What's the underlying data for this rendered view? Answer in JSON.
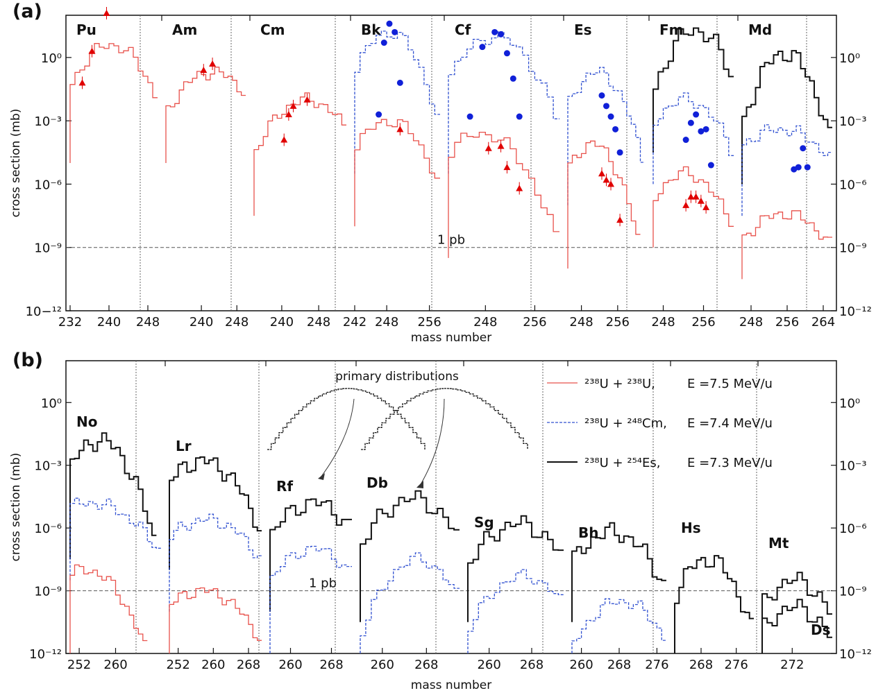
{
  "figure": {
    "panels": [
      {
        "letter": "(a)",
        "xlabel": "mass number",
        "ylabel": "cross section (mb)",
        "yticks": [
          "10−¹²",
          "10⁻⁹",
          "10⁻⁶",
          "10⁻³",
          "10⁰"
        ],
        "yticks_right": [
          "10⁻¹²",
          "10⁻⁹",
          "10⁻⁶",
          "10⁻³",
          "10⁰"
        ],
        "hline_label": "1 pb"
      },
      {
        "letter": "(b)",
        "xlabel": "mass number",
        "ylabel": "cross section (mb)",
        "yticks": [
          "10⁻¹²",
          "10⁻⁹",
          "10⁻⁶",
          "10⁻³",
          "10⁰"
        ],
        "yticks_right": [
          "10⁻¹²",
          "10⁻⁹",
          "10⁻⁶",
          "10⁻³",
          "10⁰"
        ],
        "hline_label": "1 pb",
        "annotation": "primary distributions"
      }
    ],
    "legend": [
      {
        "reaction": "²³⁸U + ²³⁸U,",
        "energy": "E =7.5 MeV/u"
      },
      {
        "reaction": "²³⁸U + ²⁴⁸Cm,",
        "energy": "E =7.4 MeV/u"
      },
      {
        "reaction": "²³⁸U + ²⁵⁴Es,",
        "energy": "E =7.3 MeV/u"
      }
    ]
  },
  "chart_data": [
    {
      "type": "line",
      "panel": "(a)",
      "ylabel": "cross section (mb)",
      "xlabel": "mass number",
      "yscale": "log",
      "ylim": [
        1e-12,
        100.0
      ],
      "hline": {
        "value": 1e-09,
        "label": "1 pb"
      },
      "colors": {
        "U238": "#e8504a",
        "Cm248": "#3050d0",
        "Es254": "#111111",
        "exp_red": "#e00000",
        "exp_blue": "#1020d8"
      },
      "subpanels": [
        {
          "element": "Pu",
          "xlim": [
            232,
            250
          ],
          "xticks": [
            "232",
            "240",
            "248"
          ],
          "series": [
            {
              "key": "U238",
              "peak_x": 240,
              "peak_logy": 0.6,
              "sigma": 4.2,
              "min_logy": -4
            }
          ],
          "exp_red": [
            [
              234,
              -1.2
            ],
            [
              236,
              0.3
            ],
            [
              239,
              2.1
            ]
          ],
          "exp_blue": []
        },
        {
          "element": "Am",
          "xlim": [
            232,
            250
          ],
          "xticks": [
            "240",
            "248"
          ],
          "series": [
            {
              "key": "U238",
              "peak_x": 242,
              "peak_logy": -0.7,
              "sigma": 4.5,
              "min_logy": -4
            }
          ],
          "exp_red": [
            [
              240,
              -0.6
            ],
            [
              242,
              -0.3
            ]
          ],
          "exp_blue": []
        },
        {
          "element": "Cm",
          "xlim": [
            234,
            254
          ],
          "xticks": [
            "240",
            "248"
          ],
          "series": [
            {
              "key": "U238",
              "peak_x": 245,
              "peak_logy": -2.0,
              "sigma": 5.0,
              "min_logy": -6.5
            }
          ],
          "exp_red": [
            [
              240,
              -3.9
            ],
            [
              241,
              -2.7
            ],
            [
              242,
              -2.3
            ],
            [
              245,
              -2.0
            ]
          ],
          "exp_blue": []
        },
        {
          "element": "Bk",
          "xlim": [
            242,
            258
          ],
          "xticks": [
            "242",
            "248",
            "256"
          ],
          "series": [
            {
              "key": "Cm248",
              "peak_x": 248,
              "peak_logy": 1.2,
              "sigma": 3.6,
              "min_logy": -4.5
            },
            {
              "key": "U238",
              "peak_x": 248,
              "peak_logy": -3.0,
              "sigma": 3.6,
              "min_logy": -7.0
            }
          ],
          "exp_red": [
            [
              250,
              -3.4
            ]
          ],
          "exp_blue": [
            [
              246,
              -2.7
            ],
            [
              247,
              0.7
            ],
            [
              248,
              1.6
            ],
            [
              249,
              1.2
            ],
            [
              250,
              -1.2
            ]
          ]
        },
        {
          "element": "Cf",
          "xlim": [
            242,
            260
          ],
          "xticks": [
            "248",
            "256"
          ],
          "series": [
            {
              "key": "Cm248",
              "peak_x": 249,
              "peak_logy": 1.0,
              "sigma": 4.0,
              "min_logy": -4.5
            },
            {
              "key": "U238",
              "peak_x": 247,
              "peak_logy": -3.6,
              "sigma": 4.0,
              "min_logy": -8.5
            }
          ],
          "exp_red": [
            [
              248,
              -4.3
            ],
            [
              250,
              -4.2
            ],
            [
              251,
              -5.2
            ],
            [
              253,
              -6.2
            ]
          ],
          "exp_blue": [
            [
              245,
              -2.8
            ],
            [
              247,
              0.5
            ],
            [
              249,
              1.2
            ],
            [
              250,
              1.1
            ],
            [
              251,
              0.2
            ],
            [
              252,
              -1.0
            ],
            [
              253,
              -2.8
            ]
          ]
        },
        {
          "element": "Es",
          "xlim": [
            245,
            262
          ],
          "xticks": [
            "248",
            "256"
          ],
          "series": [
            {
              "key": "Cm248",
              "peak_x": 251,
              "peak_logy": -0.7,
              "sigma": 3.8,
              "min_logy": -6.0
            },
            {
              "key": "U238",
              "peak_x": 250,
              "peak_logy": -4.1,
              "sigma": 3.5,
              "min_logy": -9.0
            }
          ],
          "exp_red": [
            [
              252,
              -5.5
            ],
            [
              253,
              -5.8
            ],
            [
              254,
              -6.0
            ],
            [
              256,
              -7.7
            ]
          ],
          "exp_blue": [
            [
              252,
              -1.8
            ],
            [
              253,
              -2.3
            ],
            [
              254,
              -2.8
            ],
            [
              255,
              -3.4
            ],
            [
              256,
              -4.5
            ]
          ]
        },
        {
          "element": "Fm",
          "xlim": [
            246,
            262
          ],
          "xticks": [
            "248",
            "256"
          ],
          "series": [
            {
              "key": "Es254",
              "peak_x": 254,
              "peak_logy": 1.3,
              "sigma": 3.5,
              "min_logy": -3.5
            },
            {
              "key": "Cm248",
              "peak_x": 252,
              "peak_logy": -2.0,
              "sigma": 3.4,
              "min_logy": -5.0
            },
            {
              "key": "U238",
              "peak_x": 252,
              "peak_logy": -5.5,
              "sigma": 3.0,
              "min_logy": -8.0
            }
          ],
          "exp_red": [
            [
              252,
              -7.0
            ],
            [
              253,
              -6.6
            ],
            [
              254,
              -6.6
            ],
            [
              255,
              -6.8
            ],
            [
              256,
              -7.1
            ]
          ],
          "exp_blue": [
            [
              252,
              -3.9
            ],
            [
              253,
              -3.1
            ],
            [
              254,
              -2.7
            ],
            [
              255,
              -3.5
            ],
            [
              256,
              -3.4
            ],
            [
              257,
              -5.1
            ]
          ]
        },
        {
          "element": "Md",
          "xlim": [
            246,
            266
          ],
          "xticks": [
            "248",
            "256",
            "264"
          ],
          "series": [
            {
              "key": "Es254",
              "peak_x": 255,
              "peak_logy": 0.2,
              "sigma": 3.8,
              "min_logy": -5.0
            },
            {
              "key": "Cm248",
              "peak_x": 254,
              "peak_logy": -3.4,
              "sigma": 5.5,
              "min_logy": -6.5
            },
            {
              "key": "U238",
              "peak_x": 255,
              "peak_logy": -7.4,
              "sigma": 4.0,
              "min_logy": -9.5
            }
          ],
          "exp_red": [],
          "exp_blue": [
            [
              257,
              -5.3
            ],
            [
              258,
              -5.2
            ],
            [
              259,
              -4.3
            ],
            [
              260,
              -5.2
            ]
          ]
        }
      ]
    },
    {
      "type": "line",
      "panel": "(b)",
      "ylabel": "cross section (mb)",
      "xlabel": "mass number",
      "yscale": "log",
      "ylim": [
        1e-12,
        100.0
      ],
      "hline": {
        "value": 1e-09,
        "label": "1 pb"
      },
      "subpanels": [
        {
          "element": "No",
          "xlim": [
            250,
            270
          ],
          "xticks": [
            "252",
            "260"
          ],
          "series": [
            {
              "key": "Es254",
              "peak_x": 256,
              "peak_logy": -1.8,
              "sigma": 4.0,
              "min_logy": -6.5
            },
            {
              "key": "Cm248",
              "peak_x": 254,
              "peak_logy": -4.8,
              "sigma": 5.5,
              "min_logy": -7.5
            },
            {
              "key": "U238",
              "peak_x": 253,
              "peak_logy": -8.0,
              "sigma": 4.5,
              "min_logy": -12.0
            }
          ]
        },
        {
          "element": "Lr",
          "xlim": [
            250,
            271
          ],
          "xticks": [
            "252",
            "260",
            "268"
          ],
          "series": [
            {
              "key": "Es254",
              "peak_x": 257,
              "peak_logy": -2.8,
              "sigma": 5.0,
              "min_logy": -7.0
            },
            {
              "key": "Cm248",
              "peak_x": 258,
              "peak_logy": -5.6,
              "sigma": 5.5,
              "min_logy": -9.0
            },
            {
              "key": "U238",
              "peak_x": 257,
              "peak_logy": -9.0,
              "sigma": 5.0,
              "min_logy": -12.0
            }
          ]
        },
        {
          "element": "Rf",
          "xlim": [
            256,
            272
          ],
          "xticks": [
            "260",
            "268"
          ],
          "series": [
            {
              "key": "Es254",
              "peak_x": 264,
              "peak_logy": -4.8,
              "sigma": 4.5,
              "min_logy": -9.0
            },
            {
              "key": "Cm248",
              "peak_x": 264,
              "peak_logy": -7.0,
              "sigma": 4.5,
              "min_logy": -11.0
            }
          ]
        },
        {
          "element": "Db",
          "xlim": [
            256,
            274
          ],
          "xticks": [
            "260",
            "268"
          ],
          "series": [
            {
              "key": "Es254",
              "peak_x": 265,
              "peak_logy": -4.6,
              "sigma": 4.5,
              "min_logy": -9.5
            },
            {
              "key": "Cm248",
              "peak_x": 266,
              "peak_logy": -7.5,
              "sigma": 3.8,
              "min_logy": -12.0
            }
          ]
        },
        {
          "element": "Sg",
          "xlim": [
            256,
            274
          ],
          "xticks": [
            "260",
            "268"
          ],
          "series": [
            {
              "key": "Es254",
              "peak_x": 265,
              "peak_logy": -5.8,
              "sigma": 4.2,
              "min_logy": -9.5
            },
            {
              "key": "Cm248",
              "peak_x": 266,
              "peak_logy": -8.3,
              "sigma": 3.5,
              "min_logy": -11.0
            }
          ]
        },
        {
          "element": "Bh",
          "xlim": [
            258,
            278
          ],
          "xticks": [
            "260",
            "268",
            "276"
          ],
          "series": [
            {
              "key": "Es254",
              "peak_x": 266,
              "peak_logy": -6.2,
              "sigma": 4.2,
              "min_logy": -9.5
            },
            {
              "key": "Cm248",
              "peak_x": 268,
              "peak_logy": -9.5,
              "sigma": 3.5,
              "min_logy": -11.8
            }
          ]
        },
        {
          "element": "Hs",
          "xlim": [
            262,
            280
          ],
          "xticks": [
            "268",
            "276"
          ],
          "series": [
            {
              "key": "Es254",
              "peak_x": 269,
              "peak_logy": -7.5,
              "sigma": 3.8,
              "min_logy": -11.8
            }
          ]
        },
        {
          "element": "Mt",
          "xlim": [
            266,
            280
          ],
          "xticks": [
            "272"
          ],
          "series": [
            {
              "key": "Es254",
              "peak_x": 272,
              "peak_logy": -8.5,
              "sigma": 3.0,
              "min_logy": -11.0
            }
          ]
        },
        {
          "element": "Ds",
          "xlim": [
            266,
            280
          ],
          "xticks": [],
          "series": [
            {
              "key": "Es254",
              "peak_x": 272,
              "peak_logy": -9.8,
              "sigma": 3.0,
              "min_logy": -12.0
            }
          ]
        }
      ],
      "primary_distributions": [
        {
          "peak_x": 245,
          "sigma": 12
        },
        {
          "peak_x": 250,
          "sigma": 12
        }
      ]
    }
  ]
}
